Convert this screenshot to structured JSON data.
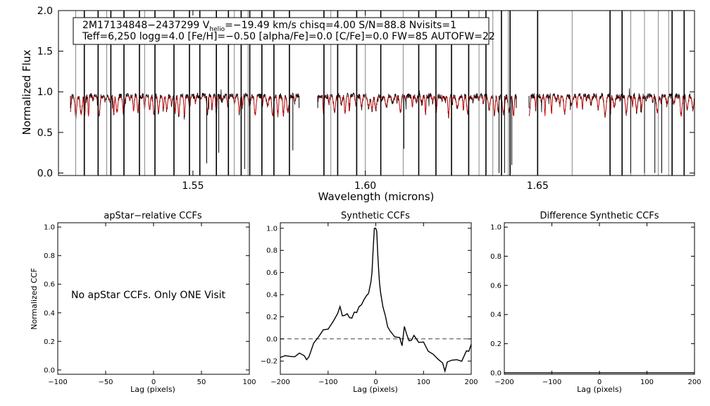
{
  "chart_data": [
    {
      "type": "line",
      "id": "spectrum",
      "title": "",
      "xlabel": "Wavelength (microns)",
      "ylabel": "Normalized Flux",
      "xlim": [
        1.511,
        1.6955
      ],
      "ylim": [
        -0.03,
        2.0
      ],
      "xticks": [
        1.55,
        1.6,
        1.65
      ],
      "xtick_labels": [
        "1.55",
        "1.60",
        "1.65"
      ],
      "yticks": [
        0.0,
        0.5,
        1.0,
        1.5,
        2.0
      ],
      "ytick_labels": [
        "0.0",
        "0.5",
        "1.0",
        "1.5",
        "2.0"
      ],
      "info_line1": {
        "star": "2M17134848−2437299  V",
        "sub": "helio",
        "rest": "=−19.49 km/s  chisq=4.00  S/N=88.8  Nvisits=1"
      },
      "info_line2": "Teff=6,250 logg=4.0 [Fe/H]=−0.50 [alpha/Fe]=0.0 [C/Fe]=0.0 FW=85 AUTOFW=22",
      "chip_ranges": [
        [
          1.5145,
          1.5808
        ],
        [
          1.5862,
          1.6438
        ],
        [
          1.6475,
          1.6955
        ]
      ],
      "continuum": 0.95,
      "series": [
        {
          "name": "observed",
          "color": "#000000"
        },
        {
          "name": "model",
          "color": "#dd0000"
        }
      ],
      "lines_to_top": [
        1.5185,
        1.5225,
        1.5262,
        1.53,
        1.5345,
        1.539,
        1.5445,
        1.549,
        1.552,
        1.5568,
        1.5603,
        1.564,
        1.5665,
        1.57,
        1.5735,
        1.578,
        1.588,
        1.592,
        1.5975,
        1.6045,
        1.6155,
        1.6205,
        1.625,
        1.63,
        1.635,
        1.6395,
        1.642,
        1.65,
        1.671,
        1.6745,
        1.689,
        1.6925
      ],
      "gray_spikes": [
        1.516,
        1.525,
        1.536,
        1.562,
        1.566,
        1.59,
        1.6,
        1.611,
        1.633,
        1.637,
        1.6415,
        1.66,
        1.677,
        1.681,
        1.685,
        1.688
      ],
      "deep_dips": [
        [
          1.554,
          0.12
        ],
        [
          1.5575,
          0.25
        ],
        [
          1.565,
          0.05
        ],
        [
          1.579,
          0.28
        ],
        [
          1.6112,
          0.3
        ],
        [
          1.6388,
          0.0
        ],
        [
          1.6404,
          0.0
        ],
        [
          1.6425,
          0.1
        ],
        [
          1.677,
          0.0
        ],
        [
          1.681,
          0.0
        ],
        [
          1.684,
          0.0
        ],
        [
          1.686,
          0.0
        ]
      ]
    },
    {
      "type": "line",
      "id": "apstar_ccf",
      "title": "apStar−relative CCFs",
      "xlabel": "Lag (pixels)",
      "ylabel": "Normalized CCF",
      "xlim": [
        -100,
        100
      ],
      "ylim": [
        -0.03,
        1.03
      ],
      "xticks": [
        -100,
        -50,
        0,
        50,
        100
      ],
      "xtick_labels": [
        "−100",
        "−50",
        "0",
        "50",
        "100"
      ],
      "yticks": [
        0.0,
        0.2,
        0.4,
        0.6,
        0.8,
        1.0
      ],
      "ytick_labels": [
        "0.0",
        "0.2",
        "0.4",
        "0.6",
        "0.8",
        "1.0"
      ],
      "annotation": "No apStar CCFs.  Only ONE Visit",
      "series": []
    },
    {
      "type": "line",
      "id": "synthetic_ccf",
      "title": "Synthetic CCFs",
      "xlabel": "Lag (pixels)",
      "ylabel": "",
      "xlim": [
        -200,
        200
      ],
      "ylim": [
        -0.32,
        1.05
      ],
      "xticks": [
        -200,
        -100,
        0,
        100,
        200
      ],
      "xtick_labels": [
        "−200",
        "−100",
        "0",
        "100",
        "200"
      ],
      "yticks": [
        -0.2,
        0.0,
        0.2,
        0.4,
        0.6,
        0.8,
        1.0
      ],
      "ytick_labels": [
        "−0.2",
        "0.0",
        "0.2",
        "0.4",
        "0.6",
        "0.8",
        "1.0"
      ],
      "zero_line": 0.0,
      "series": [
        {
          "name": "ccf",
          "color": "#000000",
          "x": [
            -200,
            -190,
            -180,
            -170,
            -160,
            -150,
            -145,
            -140,
            -130,
            -120,
            -110,
            -100,
            -90,
            -80,
            -75,
            -70,
            -65,
            -60,
            -55,
            -50,
            -45,
            -40,
            -35,
            -30,
            -25,
            -20,
            -15,
            -10,
            -8,
            -5,
            -3,
            0,
            2,
            4,
            6,
            8,
            10,
            15,
            20,
            25,
            30,
            40,
            50,
            55,
            60,
            65,
            70,
            75,
            80,
            90,
            100,
            110,
            120,
            130,
            140,
            145,
            150,
            160,
            170,
            180,
            190,
            195,
            200
          ],
          "y": [
            -0.18,
            -0.14,
            -0.17,
            -0.15,
            -0.14,
            -0.14,
            -0.2,
            -0.15,
            -0.05,
            0.03,
            0.07,
            0.1,
            0.14,
            0.24,
            0.28,
            0.22,
            0.2,
            0.24,
            0.18,
            0.2,
            0.23,
            0.25,
            0.28,
            0.32,
            0.34,
            0.4,
            0.4,
            0.52,
            0.6,
            0.85,
            1.0,
            1.0,
            0.97,
            0.78,
            0.62,
            0.5,
            0.42,
            0.3,
            0.2,
            0.12,
            0.06,
            0.03,
            0.0,
            -0.05,
            0.1,
            0.05,
            -0.03,
            0.0,
            0.02,
            -0.02,
            -0.04,
            -0.1,
            -0.15,
            -0.17,
            -0.23,
            -0.28,
            -0.22,
            -0.18,
            -0.2,
            -0.19,
            -0.12,
            -0.1,
            -0.06
          ]
        }
      ]
    },
    {
      "type": "line",
      "id": "difference_ccf",
      "title": "Difference Synthetic CCFs",
      "xlabel": "Lag (pixels)",
      "ylabel": "",
      "xlim": [
        -200,
        200
      ],
      "ylim": [
        -0.01,
        1.03
      ],
      "xticks": [
        -200,
        -100,
        0,
        100,
        200
      ],
      "xtick_labels": [
        "−200",
        "−100",
        "0",
        "100",
        "200"
      ],
      "yticks": [
        0.0,
        0.2,
        0.4,
        0.6,
        0.8,
        1.0
      ],
      "ytick_labels": [
        "0.0",
        "0.2",
        "0.4",
        "0.6",
        "0.8",
        "1.0"
      ],
      "series": [
        {
          "name": "difference",
          "color": "#000000",
          "x": [
            -200,
            200
          ],
          "y": [
            0.0,
            0.0
          ]
        }
      ]
    }
  ]
}
